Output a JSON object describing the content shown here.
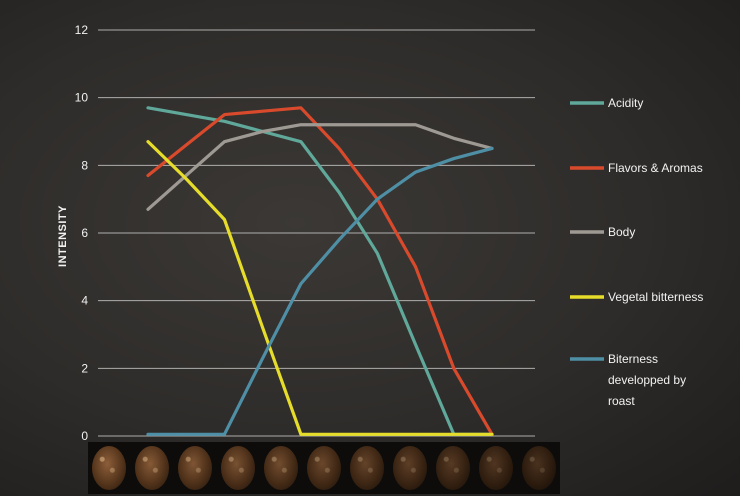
{
  "chart_data": {
    "type": "line",
    "title": "",
    "xlabel": "",
    "ylabel": "INTENSITY",
    "ylim": [
      0,
      12
    ],
    "yticks": [
      0,
      2,
      4,
      6,
      8,
      10,
      12
    ],
    "grid": true,
    "legend_position": "right",
    "x": [
      1,
      2,
      3,
      4,
      5,
      6,
      7,
      8,
      9,
      10
    ],
    "series": [
      {
        "name": "Acidity",
        "color": "#5fa89a",
        "values": [
          9.7,
          9.5,
          9.3,
          9.0,
          8.7,
          7.2,
          5.4,
          2.7,
          0.05,
          0.05
        ]
      },
      {
        "name": "Flavors & Aromas",
        "color": "#d94a2c",
        "values": [
          7.7,
          8.6,
          9.5,
          9.6,
          9.7,
          8.5,
          7.0,
          5.0,
          2.0,
          0.05
        ]
      },
      {
        "name": "Body",
        "color": "#9e9a93",
        "values": [
          6.7,
          7.7,
          8.7,
          9.0,
          9.2,
          9.2,
          9.2,
          9.2,
          8.8,
          8.5
        ]
      },
      {
        "name": "Vegetal bitterness",
        "color": "#e6dc2a",
        "values": [
          8.7,
          7.6,
          6.4,
          3.2,
          0.05,
          0.05,
          0.05,
          0.05,
          0.05,
          0.05
        ]
      },
      {
        "name": "Biterness developped by roast",
        "color": "#4f8fa6",
        "values": [
          0.05,
          0.05,
          0.05,
          2.3,
          4.5,
          5.8,
          7.0,
          7.8,
          8.2,
          8.5
        ]
      }
    ]
  },
  "legend": [
    {
      "label": "Acidity",
      "color": "#5fa89a"
    },
    {
      "label": "Flavors & Aromas",
      "color": "#d94a2c"
    },
    {
      "label": "Body",
      "color": "#9e9a93"
    },
    {
      "label": "Vegetal bitterness",
      "color": "#e6dc2a"
    },
    {
      "label_lines": [
        "Biterness",
        "developped by",
        "roast"
      ],
      "color": "#4f8fa6"
    }
  ],
  "beans": {
    "count": 11,
    "icon": "coffee-bean-icon"
  }
}
